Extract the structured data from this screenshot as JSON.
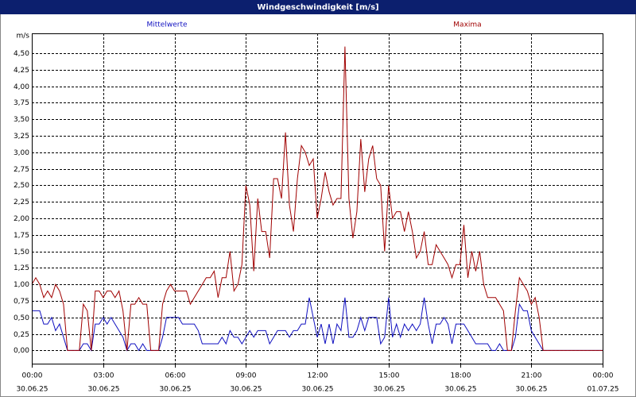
{
  "chart_data": {
    "type": "line",
    "title": "Windgeschwindigkeit [m/s]",
    "y_label": "m/s",
    "x": [
      0,
      10,
      20,
      30,
      40,
      50,
      60,
      70,
      80,
      90,
      100,
      110,
      120,
      130,
      140,
      150,
      160,
      170,
      180,
      190,
      200,
      210,
      220,
      230,
      240,
      250,
      260,
      270,
      280,
      290,
      300,
      310,
      320,
      330,
      340,
      350,
      360,
      370,
      380,
      390,
      400,
      410,
      420,
      430,
      440,
      450,
      460,
      470,
      480,
      490,
      500,
      510,
      520,
      530,
      540,
      550,
      560,
      570,
      580,
      590,
      600,
      610,
      620,
      630,
      640,
      650,
      660,
      670,
      680,
      690,
      700,
      710,
      720,
      730,
      740,
      750,
      760,
      770,
      780,
      790,
      800,
      810,
      820,
      830,
      840,
      850,
      860,
      870,
      880,
      890,
      900,
      910,
      920,
      930,
      940,
      950,
      960,
      970,
      980,
      990,
      1000,
      1010,
      1020,
      1030,
      1040,
      1050,
      1060,
      1070,
      1080,
      1090,
      1100,
      1110,
      1120,
      1130,
      1140,
      1150,
      1160,
      1170,
      1180,
      1190,
      1200,
      1210,
      1220,
      1230,
      1240,
      1250,
      1260,
      1270,
      1280,
      1290,
      1300,
      1310,
      1320,
      1330,
      1340,
      1350,
      1360,
      1370,
      1380,
      1390,
      1400,
      1410,
      1420,
      1430,
      1440
    ],
    "series": [
      {
        "name": "Mittelwerte",
        "color": "#1010c0",
        "values": [
          0.6,
          0.6,
          0.6,
          0.4,
          0.4,
          0.5,
          0.3,
          0.4,
          0.2,
          0,
          0,
          0,
          0,
          0.1,
          0.1,
          0,
          0.4,
          0.4,
          0.5,
          0.4,
          0.5,
          0.4,
          0.3,
          0.2,
          0,
          0.1,
          0.1,
          0,
          0.1,
          0,
          0,
          0,
          0,
          0.2,
          0.5,
          0.5,
          0.5,
          0.5,
          0.4,
          0.4,
          0.4,
          0.4,
          0.3,
          0.1,
          0.1,
          0.1,
          0.1,
          0.1,
          0.2,
          0.1,
          0.3,
          0.2,
          0.2,
          0.1,
          0.2,
          0.3,
          0.2,
          0.3,
          0.3,
          0.3,
          0.1,
          0.2,
          0.3,
          0.3,
          0.3,
          0.2,
          0.3,
          0.3,
          0.4,
          0.4,
          0.8,
          0.5,
          0.2,
          0.4,
          0.1,
          0.4,
          0.1,
          0.4,
          0.3,
          0.8,
          0.2,
          0.2,
          0.3,
          0.5,
          0.3,
          0.5,
          0.5,
          0.5,
          0.1,
          0.2,
          0.8,
          0.2,
          0.4,
          0.2,
          0.4,
          0.3,
          0.4,
          0.3,
          0.4,
          0.8,
          0.4,
          0.1,
          0.4,
          0.4,
          0.5,
          0.4,
          0.1,
          0.4,
          0.4,
          0.4,
          0.3,
          0.2,
          0.1,
          0.1,
          0.1,
          0.1,
          0,
          0,
          0.1,
          0,
          0,
          0,
          0.2,
          0.7,
          0.6,
          0.6,
          0.3,
          0.2,
          0.1,
          0,
          0,
          0,
          0,
          0,
          0,
          0,
          0,
          0,
          0,
          0,
          0,
          0,
          0,
          0,
          0
        ]
      },
      {
        "name": "Maxima",
        "color": "#a00000",
        "values": [
          1.0,
          1.1,
          1.0,
          0.8,
          0.9,
          0.8,
          1.0,
          0.9,
          0.7,
          0,
          0,
          0,
          0,
          0.7,
          0.6,
          0,
          0.9,
          0.9,
          0.8,
          0.9,
          0.9,
          0.8,
          0.9,
          0.6,
          0,
          0.7,
          0.7,
          0.8,
          0.7,
          0.7,
          0,
          0,
          0,
          0.7,
          0.9,
          1.0,
          0.9,
          0.9,
          0.9,
          0.9,
          0.7,
          0.8,
          0.9,
          1.0,
          1.1,
          1.1,
          1.2,
          0.8,
          1.1,
          1.1,
          1.5,
          0.9,
          1.0,
          1.3,
          2.5,
          2.2,
          1.2,
          2.3,
          1.8,
          1.8,
          1.4,
          2.6,
          2.6,
          2.3,
          3.3,
          2.2,
          1.8,
          2.6,
          3.1,
          3.0,
          2.8,
          2.9,
          2.0,
          2.3,
          2.7,
          2.4,
          2.2,
          2.3,
          2.3,
          4.6,
          2.3,
          1.7,
          2.1,
          3.2,
          2.4,
          2.9,
          3.1,
          2.6,
          2.5,
          1.5,
          2.5,
          2.0,
          2.1,
          2.1,
          1.8,
          2.1,
          1.8,
          1.4,
          1.5,
          1.8,
          1.3,
          1.3,
          1.6,
          1.5,
          1.4,
          1.3,
          1.1,
          1.3,
          1.3,
          1.9,
          1.1,
          1.5,
          1.2,
          1.5,
          1.0,
          0.8,
          0.8,
          0.8,
          0.7,
          0.6,
          0,
          0,
          0.6,
          1.1,
          1.0,
          0.9,
          0.7,
          0.8,
          0.5,
          0,
          0,
          0,
          0,
          0,
          0,
          0,
          0,
          0,
          0,
          0,
          0,
          0,
          0,
          0,
          0
        ]
      }
    ],
    "xlim": [
      0,
      1440
    ],
    "xticks": [
      {
        "value": 0,
        "label": "00:00",
        "date": "30.06.25"
      },
      {
        "value": 180,
        "label": "03:00",
        "date": "30.06.25"
      },
      {
        "value": 360,
        "label": "06:00",
        "date": "30.06.25"
      },
      {
        "value": 540,
        "label": "09:00",
        "date": "30.06.25"
      },
      {
        "value": 720,
        "label": "12:00",
        "date": "30.06.25"
      },
      {
        "value": 900,
        "label": "15:00",
        "date": "30.06.25"
      },
      {
        "value": 1080,
        "label": "18:00",
        "date": "30.06.25"
      },
      {
        "value": 1260,
        "label": "21:00",
        "date": "30.06.25"
      },
      {
        "value": 1440,
        "label": "00:00",
        "date": "01.07.25"
      }
    ],
    "ylim": [
      -0.2,
      4.8
    ],
    "yticks": [
      {
        "value": 0,
        "label": "0,00"
      },
      {
        "value": 0.25,
        "label": "0,25"
      },
      {
        "value": 0.5,
        "label": "0,50"
      },
      {
        "value": 0.75,
        "label": "0,75"
      },
      {
        "value": 1,
        "label": "1,00"
      },
      {
        "value": 1.25,
        "label": "1,25"
      },
      {
        "value": 1.5,
        "label": "1,50"
      },
      {
        "value": 1.75,
        "label": "1,75"
      },
      {
        "value": 2,
        "label": "2,00"
      },
      {
        "value": 2.25,
        "label": "2,25"
      },
      {
        "value": 2.5,
        "label": "2,50"
      },
      {
        "value": 2.75,
        "label": "2,75"
      },
      {
        "value": 3,
        "label": "3,00"
      },
      {
        "value": 3.25,
        "label": "3,25"
      },
      {
        "value": 3.5,
        "label": "3,50"
      },
      {
        "value": 3.75,
        "label": "3,75"
      },
      {
        "value": 4,
        "label": "4,00"
      },
      {
        "value": 4.25,
        "label": "4,25"
      },
      {
        "value": 4.5,
        "label": "4,50"
      }
    ],
    "grid": true
  }
}
